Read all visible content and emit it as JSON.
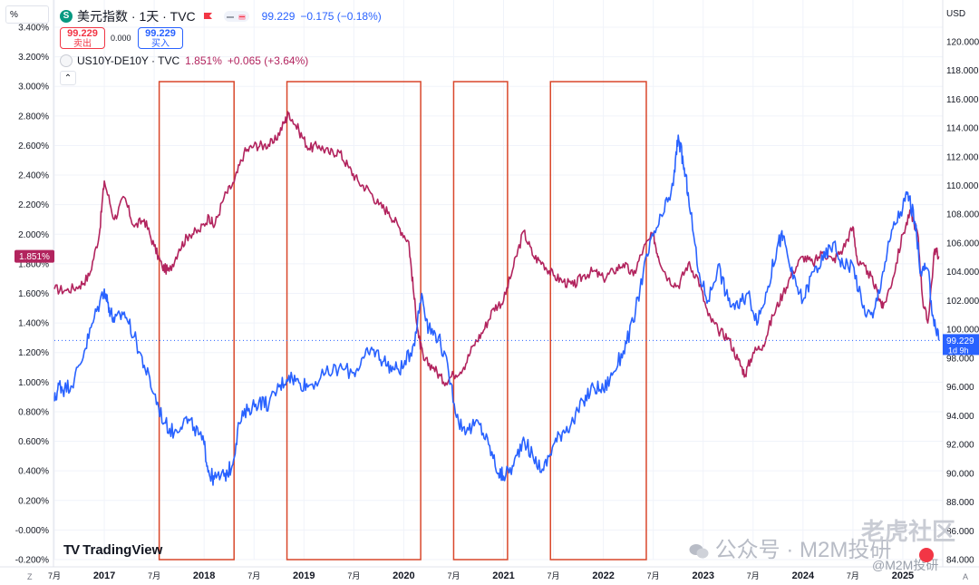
{
  "header": {
    "percent_label": "%",
    "symbol_icon": "S",
    "symbol_title": "美元指数 · 1天 · TVC",
    "price": "99.229",
    "change": "−0.175 (−0.18%)",
    "sell_value": "99.229",
    "sell_label": "卖出",
    "spread": "0.000",
    "buy_value": "99.229",
    "buy_label": "买入",
    "series2_title": "US10Y-DE10Y · TVC",
    "series2_value": "1.851%",
    "series2_change": "+0.065 (+3.64%)",
    "right_unit": "USD",
    "collapse_glyph": "⌃"
  },
  "logo": {
    "mark": "TV",
    "text": "TradingView"
  },
  "watermarks": {
    "wechat": "公众号 · M2M投研",
    "site": "老虎社区",
    "handle": "@M2M投研"
  },
  "corner_labels": {
    "left": "Z",
    "right": "A"
  },
  "colors": {
    "dxy": "#2962ff",
    "spread": "#b2245e",
    "boxes": "#d9472b",
    "price_line": "#2962ff",
    "text": "#131722"
  },
  "chart_data": {
    "type": "line",
    "title": "",
    "left_axis": {
      "unit": "%",
      "range": [
        -0.2,
        3.4
      ],
      "ticks": [
        "-0.200%",
        "-0.000%",
        "0.200%",
        "0.400%",
        "0.600%",
        "0.800%",
        "1.000%",
        "1.200%",
        "1.400%",
        "1.600%",
        "1.800%",
        "2.000%",
        "2.200%",
        "2.400%",
        "2.600%",
        "2.800%",
        "3.000%",
        "3.200%",
        "3.400%"
      ]
    },
    "right_axis": {
      "unit": "USD",
      "range": [
        84,
        121
      ],
      "ticks": [
        "84.000",
        "86.000",
        "88.000",
        "90.000",
        "92.000",
        "94.000",
        "96.000",
        "98.000",
        "100.000",
        "102.000",
        "104.000",
        "106.000",
        "108.000",
        "110.000",
        "112.000",
        "114.000",
        "116.000",
        "118.000",
        "120.000"
      ]
    },
    "x_axis": {
      "range": [
        2016.5,
        2025.4
      ],
      "ticks": [
        {
          "t": 2016.5,
          "label": "7月",
          "bold": false
        },
        {
          "t": 2017.0,
          "label": "2017",
          "bold": true
        },
        {
          "t": 2017.5,
          "label": "7月",
          "bold": false
        },
        {
          "t": 2018.0,
          "label": "2018",
          "bold": true
        },
        {
          "t": 2018.5,
          "label": "7月",
          "bold": false
        },
        {
          "t": 2019.0,
          "label": "2019",
          "bold": true
        },
        {
          "t": 2019.5,
          "label": "7月",
          "bold": false
        },
        {
          "t": 2020.0,
          "label": "2020",
          "bold": true
        },
        {
          "t": 2020.5,
          "label": "7月",
          "bold": false
        },
        {
          "t": 2021.0,
          "label": "2021",
          "bold": true
        },
        {
          "t": 2021.5,
          "label": "7月",
          "bold": false
        },
        {
          "t": 2022.0,
          "label": "2022",
          "bold": true
        },
        {
          "t": 2022.5,
          "label": "7月",
          "bold": false
        },
        {
          "t": 2023.0,
          "label": "2023",
          "bold": true
        },
        {
          "t": 2023.5,
          "label": "7月",
          "bold": false
        },
        {
          "t": 2024.0,
          "label": "2024",
          "bold": true
        },
        {
          "t": 2024.5,
          "label": "7月",
          "bold": false
        },
        {
          "t": 2025.0,
          "label": "2025",
          "bold": true
        }
      ]
    },
    "grid": true,
    "series": [
      {
        "name": "US10Y-DE10Y · TVC",
        "axis": "left",
        "color": "#b2245e",
        "points": [
          [
            2016.5,
            1.63
          ],
          [
            2016.62,
            1.62
          ],
          [
            2016.75,
            1.65
          ],
          [
            2016.85,
            1.72
          ],
          [
            2016.95,
            2.0
          ],
          [
            2017.0,
            2.36
          ],
          [
            2017.1,
            2.1
          ],
          [
            2017.2,
            2.25
          ],
          [
            2017.3,
            2.05
          ],
          [
            2017.4,
            2.1
          ],
          [
            2017.5,
            1.92
          ],
          [
            2017.58,
            1.78
          ],
          [
            2017.65,
            1.75
          ],
          [
            2017.75,
            1.9
          ],
          [
            2017.85,
            2.0
          ],
          [
            2017.95,
            2.02
          ],
          [
            2018.05,
            2.12
          ],
          [
            2018.1,
            2.05
          ],
          [
            2018.2,
            2.25
          ],
          [
            2018.3,
            2.35
          ],
          [
            2018.4,
            2.55
          ],
          [
            2018.5,
            2.6
          ],
          [
            2018.6,
            2.6
          ],
          [
            2018.7,
            2.62
          ],
          [
            2018.8,
            2.75
          ],
          [
            2018.85,
            2.82
          ],
          [
            2018.95,
            2.7
          ],
          [
            2019.05,
            2.58
          ],
          [
            2019.15,
            2.6
          ],
          [
            2019.25,
            2.55
          ],
          [
            2019.35,
            2.56
          ],
          [
            2019.45,
            2.45
          ],
          [
            2019.55,
            2.35
          ],
          [
            2019.65,
            2.3
          ],
          [
            2019.75,
            2.2
          ],
          [
            2019.85,
            2.15
          ],
          [
            2019.95,
            2.05
          ],
          [
            2020.05,
            1.95
          ],
          [
            2020.1,
            1.6
          ],
          [
            2020.15,
            1.3
          ],
          [
            2020.2,
            1.15
          ],
          [
            2020.3,
            1.1
          ],
          [
            2020.4,
            1.0
          ],
          [
            2020.5,
            1.05
          ],
          [
            2020.6,
            1.1
          ],
          [
            2020.7,
            1.25
          ],
          [
            2020.8,
            1.35
          ],
          [
            2020.9,
            1.5
          ],
          [
            2021.0,
            1.55
          ],
          [
            2021.1,
            1.78
          ],
          [
            2021.2,
            2.02
          ],
          [
            2021.3,
            1.85
          ],
          [
            2021.4,
            1.8
          ],
          [
            2021.5,
            1.72
          ],
          [
            2021.6,
            1.68
          ],
          [
            2021.7,
            1.65
          ],
          [
            2021.8,
            1.72
          ],
          [
            2021.9,
            1.75
          ],
          [
            2022.0,
            1.7
          ],
          [
            2022.1,
            1.75
          ],
          [
            2022.2,
            1.8
          ],
          [
            2022.3,
            1.72
          ],
          [
            2022.4,
            1.9
          ],
          [
            2022.5,
            2.0
          ],
          [
            2022.55,
            1.85
          ],
          [
            2022.65,
            1.7
          ],
          [
            2022.75,
            1.65
          ],
          [
            2022.85,
            1.8
          ],
          [
            2022.95,
            1.7
          ],
          [
            2023.05,
            1.45
          ],
          [
            2023.15,
            1.35
          ],
          [
            2023.25,
            1.3
          ],
          [
            2023.35,
            1.15
          ],
          [
            2023.42,
            1.05
          ],
          [
            2023.5,
            1.2
          ],
          [
            2023.6,
            1.25
          ],
          [
            2023.7,
            1.45
          ],
          [
            2023.8,
            1.6
          ],
          [
            2023.9,
            1.75
          ],
          [
            2024.0,
            1.85
          ],
          [
            2024.1,
            1.8
          ],
          [
            2024.2,
            1.88
          ],
          [
            2024.3,
            1.82
          ],
          [
            2024.4,
            1.9
          ],
          [
            2024.5,
            2.05
          ],
          [
            2024.55,
            1.8
          ],
          [
            2024.65,
            1.75
          ],
          [
            2024.75,
            1.6
          ],
          [
            2024.8,
            1.5
          ],
          [
            2024.9,
            1.7
          ],
          [
            2025.0,
            2.0
          ],
          [
            2025.08,
            2.15
          ],
          [
            2025.15,
            2.0
          ],
          [
            2025.2,
            1.55
          ],
          [
            2025.25,
            1.4
          ],
          [
            2025.32,
            1.9
          ],
          [
            2025.36,
            1.851
          ]
        ]
      },
      {
        "name": "美元指数 · 1天 · TVC",
        "axis": "right",
        "color": "#2962ff",
        "points": [
          [
            2016.5,
            95.0
          ],
          [
            2016.55,
            96.2
          ],
          [
            2016.6,
            95.8
          ],
          [
            2016.7,
            96.5
          ],
          [
            2016.8,
            98.5
          ],
          [
            2016.9,
            100.8
          ],
          [
            2017.0,
            102.8
          ],
          [
            2017.05,
            101.5
          ],
          [
            2017.1,
            100.5
          ],
          [
            2017.2,
            101.2
          ],
          [
            2017.3,
            99.5
          ],
          [
            2017.4,
            97.5
          ],
          [
            2017.5,
            95.5
          ],
          [
            2017.6,
            93.5
          ],
          [
            2017.7,
            92.8
          ],
          [
            2017.8,
            93.8
          ],
          [
            2017.9,
            93.2
          ],
          [
            2018.0,
            92.0
          ],
          [
            2018.05,
            90.0
          ],
          [
            2018.1,
            89.6
          ],
          [
            2018.2,
            89.8
          ],
          [
            2018.28,
            90.5
          ],
          [
            2018.35,
            93.5
          ],
          [
            2018.45,
            94.5
          ],
          [
            2018.55,
            95.0
          ],
          [
            2018.65,
            94.8
          ],
          [
            2018.75,
            96.0
          ],
          [
            2018.85,
            96.8
          ],
          [
            2018.95,
            96.3
          ],
          [
            2019.05,
            96.1
          ],
          [
            2019.2,
            96.8
          ],
          [
            2019.35,
            97.3
          ],
          [
            2019.5,
            97.0
          ],
          [
            2019.6,
            98.0
          ],
          [
            2019.7,
            98.6
          ],
          [
            2019.8,
            97.8
          ],
          [
            2019.9,
            97.2
          ],
          [
            2020.0,
            97.4
          ],
          [
            2020.1,
            99.0
          ],
          [
            2020.18,
            102.5
          ],
          [
            2020.25,
            100.0
          ],
          [
            2020.35,
            99.5
          ],
          [
            2020.45,
            97.0
          ],
          [
            2020.55,
            93.5
          ],
          [
            2020.65,
            93.0
          ],
          [
            2020.75,
            93.5
          ],
          [
            2020.85,
            92.0
          ],
          [
            2020.95,
            90.0
          ],
          [
            2021.0,
            89.8
          ],
          [
            2021.1,
            90.5
          ],
          [
            2021.2,
            92.5
          ],
          [
            2021.3,
            91.0
          ],
          [
            2021.4,
            90.2
          ],
          [
            2021.5,
            92.0
          ],
          [
            2021.6,
            93.0
          ],
          [
            2021.7,
            93.6
          ],
          [
            2021.8,
            95.0
          ],
          [
            2021.9,
            96.0
          ],
          [
            2022.0,
            95.8
          ],
          [
            2022.1,
            97.0
          ],
          [
            2022.2,
            98.5
          ],
          [
            2022.3,
            100.5
          ],
          [
            2022.4,
            104.0
          ],
          [
            2022.5,
            106.5
          ],
          [
            2022.6,
            108.0
          ],
          [
            2022.7,
            110.0
          ],
          [
            2022.75,
            113.5
          ],
          [
            2022.8,
            111.5
          ],
          [
            2022.85,
            109.5
          ],
          [
            2022.95,
            104.0
          ],
          [
            2023.05,
            102.0
          ],
          [
            2023.15,
            104.5
          ],
          [
            2023.25,
            102.0
          ],
          [
            2023.35,
            101.5
          ],
          [
            2023.45,
            102.5
          ],
          [
            2023.55,
            100.5
          ],
          [
            2023.65,
            103.0
          ],
          [
            2023.75,
            106.0
          ],
          [
            2023.8,
            106.5
          ],
          [
            2023.9,
            103.5
          ],
          [
            2024.0,
            102.0
          ],
          [
            2024.1,
            104.0
          ],
          [
            2024.2,
            104.8
          ],
          [
            2024.3,
            106.0
          ],
          [
            2024.4,
            104.5
          ],
          [
            2024.5,
            104.5
          ],
          [
            2024.6,
            101.5
          ],
          [
            2024.7,
            100.8
          ],
          [
            2024.8,
            104.0
          ],
          [
            2024.9,
            107.0
          ],
          [
            2025.0,
            108.5
          ],
          [
            2025.05,
            109.5
          ],
          [
            2025.12,
            107.5
          ],
          [
            2025.18,
            104.0
          ],
          [
            2025.25,
            104.2
          ],
          [
            2025.3,
            101.0
          ],
          [
            2025.36,
            99.229
          ]
        ]
      }
    ],
    "annotations": {
      "highlight_boxes": [
        {
          "t_start": 2017.55,
          "t_end": 2018.3
        },
        {
          "t_start": 2018.83,
          "t_end": 2020.17
        },
        {
          "t_start": 2020.5,
          "t_end": 2021.04
        },
        {
          "t_start": 2021.47,
          "t_end": 2022.43
        }
      ],
      "current_price_line": {
        "axis": "right",
        "value": 99.229
      },
      "left_last_label": {
        "text": "1.851%",
        "value": 1.851,
        "color": "#b2245e"
      },
      "right_last_label": {
        "text": "99.229",
        "sub": "1d 9h",
        "value": 99.229,
        "color": "#2962ff"
      }
    }
  }
}
